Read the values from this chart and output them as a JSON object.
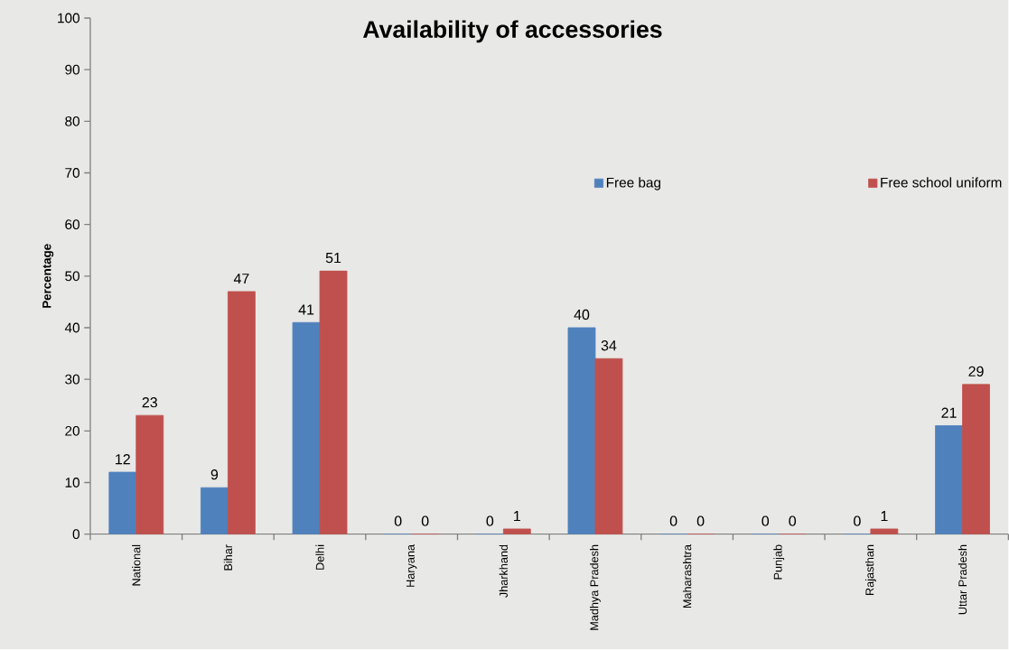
{
  "chart_data": {
    "type": "bar",
    "title": "Availability of accessories",
    "ylabel": "Percentage",
    "categories": [
      "National",
      "Bihar",
      "Delhi",
      "Haryana",
      "Jharkhand",
      "Madhya Pradesh",
      "Maharashtra",
      "Punjab",
      "Rajasthan",
      "Uttar Pradesh"
    ],
    "series": [
      {
        "name": "Free bag",
        "color": "#4f81bd",
        "values": [
          12,
          9,
          41,
          0,
          0,
          40,
          0,
          0,
          0,
          21
        ]
      },
      {
        "name": "Free school uniform",
        "color": "#c0504d",
        "values": [
          23,
          47,
          51,
          0,
          1,
          34,
          0,
          0,
          1,
          29
        ]
      }
    ],
    "ylim": [
      0,
      100
    ],
    "yticks": [
      0,
      10,
      20,
      30,
      40,
      50,
      60,
      70,
      80,
      90,
      100
    ],
    "data_labels": true,
    "legend": "right",
    "grid": false
  }
}
